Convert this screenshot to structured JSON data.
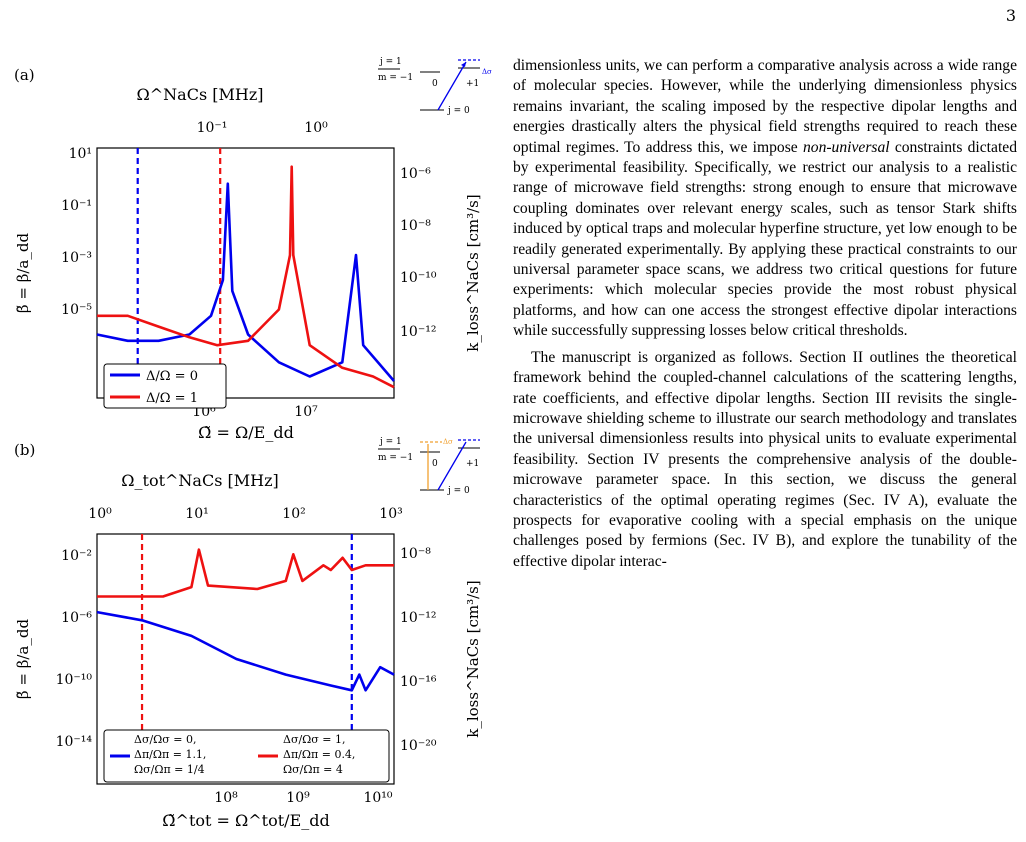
{
  "page_number": "3",
  "paragraph1": {
    "part1": "dimensionless units, we can perform a comparative analysis across a wide range of molecular species. However, while the underlying dimensionless physics remains invariant, the scaling imposed by the respective dipolar lengths and energies drastically alters the physical field strengths required to reach these optimal regimes. To address this, we impose ",
    "emph": "non-universal",
    "part2": " constraints dictated by experimental feasibility. Specifically, we restrict our analysis to a realistic range of microwave field strengths: strong enough to ensure that microwave coupling dominates over relevant energy scales, such as tensor Stark shifts induced by optical traps and molecular hyperfine structure, yet low enough to be readily generated experimentally. By applying these practical constraints to our universal parameter space scans, we address two critical questions for future experiments: which molecular species provide the most robust physical platforms, and how can one access the strongest effective dipolar interactions while successfully suppressing losses below critical thresholds."
  },
  "paragraph2": "The manuscript is organized as follows. Section II outlines the theoretical framework behind the coupled-channel calculations of the scattering lengths, rate coefficients, and effective dipolar lengths. Section III revisits the single-microwave shielding scheme to illustrate our search methodology and translates the universal dimensionless results into physical units to evaluate experimental feasibility. Section IV presents the comprehensive analysis of the double-microwave parameter space. In this section, we discuss the general characteristics of the optimal operating regimes (Sec. IV A), evaluate the prospects for evaporative cooling with a special emphasis on the unique challenges posed by fermions (Sec. IV B), and explore the tunability of the effective dipolar interac-",
  "figures": [
    {
      "panel_label": "(a)",
      "top_axis_label": "Ω^NaCs [MHz]",
      "bottom_axis_label": "Ω̃ = Ω/E_dd",
      "left_axis_label": "β̃ = β/a_dd",
      "right_axis_label": "k_loss^NaCs [cm³/s]",
      "top_ticks": [
        "10⁻¹",
        "10⁰"
      ],
      "bottom_ticks": [
        "10⁶",
        "10⁷"
      ],
      "left_ticks": [
        "10¹",
        "10⁻¹",
        "10⁻³",
        "10⁻⁵"
      ],
      "right_ticks": [
        "10⁻⁶",
        "10⁻⁸",
        "10⁻¹⁰",
        "10⁻¹²"
      ],
      "legend": [
        "Δ/Ω = 0",
        "Δ/Ω = 1"
      ],
      "inset": {
        "j1": "j = 1",
        "m": "m = −1",
        "zero": "0",
        "plus1": "+1",
        "j0": "j = 0",
        "delta": "Δσ"
      }
    },
    {
      "panel_label": "(b)",
      "top_axis_label": "Ω_tot^NaCs [MHz]",
      "bottom_axis_label": "Ω̃^tot = Ω^tot/E_dd",
      "left_axis_label": "β̃ = β/a_dd",
      "right_axis_label": "k_loss^NaCs [cm³/s]",
      "top_ticks": [
        "10⁰",
        "10¹",
        "10²",
        "10³"
      ],
      "bottom_ticks": [
        "10⁸",
        "10⁹",
        "10¹⁰"
      ],
      "left_ticks": [
        "10⁻²",
        "10⁻⁶",
        "10⁻¹⁰",
        "10⁻¹⁴"
      ],
      "right_ticks": [
        "10⁻⁸",
        "10⁻¹²",
        "10⁻¹⁶",
        "10⁻²⁰"
      ],
      "legend": [
        [
          "Δσ/Ωσ = 0,",
          "Δπ/Ωπ = 1.1,",
          "Ωσ/Ωπ = 1/4"
        ],
        [
          "Δσ/Ωσ = 1,",
          "Δπ/Ωπ = 0.4,",
          "Ωσ/Ωπ = 4"
        ]
      ],
      "inset": {
        "j1": "j = 1",
        "m": "m = −1",
        "zero": "0",
        "plus1": "+1",
        "j0": "j = 0",
        "delta": "Δσ"
      }
    }
  ],
  "colors": {
    "blue": "#0000ee",
    "red": "#ee1111",
    "orange": "#f0a030"
  },
  "chart_data": [
    {
      "type": "line",
      "title": "(a)",
      "xlabel": "Ω̃ = Ω/E_dd",
      "ylabel": "β̃ = β/a_dd",
      "x_scale": "log",
      "y_scale": "log",
      "xlim": [
        100000,
        80000000
      ],
      "ylim": [
        1e-06,
        10
      ],
      "series": [
        {
          "name": "Δ/Ω = 0",
          "x": [
            100000,
            200000,
            400000,
            800000,
            1300000,
            1700000,
            1900000,
            2100000,
            3000000,
            6000000,
            12000000,
            25000000,
            34000000,
            40000000,
            80000000
          ],
          "values": [
            6e-05,
            4e-05,
            4e-05,
            6e-05,
            0.0002,
            0.002,
            1.0,
            0.001,
            6e-05,
            1e-05,
            4e-06,
            1e-05,
            0.01,
            3e-05,
            3e-06
          ]
        },
        {
          "name": "Δ/Ω = 1",
          "x": [
            100000,
            200000,
            400000,
            800000,
            1500000,
            3000000,
            6000000,
            7700000,
            8000000,
            8300000,
            12000000,
            25000000,
            50000000,
            80000000
          ],
          "values": [
            0.0002,
            0.0002,
            0.0001,
            5e-05,
            3e-05,
            4e-05,
            0.0003,
            0.01,
            3.0,
            0.01,
            3e-05,
            7e-06,
            4e-06,
            2e-06
          ]
        }
      ],
      "vlines": [
        {
          "x": 250000,
          "color": "blue"
        },
        {
          "x": 1600000,
          "color": "red"
        }
      ]
    },
    {
      "type": "line",
      "title": "(b)",
      "xlabel": "Ω̃^tot = Ω^tot/E_dd",
      "ylabel": "β̃ = β/a_dd",
      "x_scale": "log",
      "y_scale": "log",
      "xlim": [
        10000000,
        14000000000
      ],
      "ylim": [
        1e-16,
        1
      ],
      "series": [
        {
          "name": "Δσ/Ωσ = 0, Δπ/Ωπ = 1.1, Ωσ/Ωπ = 1/4",
          "x": [
            10000000,
            30000000,
            100000000,
            300000000,
            1000000000,
            3000000000,
            5000000000,
            6000000000,
            7000000000,
            10000000000,
            14000000000
          ],
          "values": [
            1e-05,
            3e-06,
            3e-07,
            1e-08,
            1e-09,
            2e-10,
            1e-10,
            1e-09,
            1e-10,
            3e-09,
            1e-09
          ]
        },
        {
          "name": "Δσ/Ωσ = 1, Δπ/Ωπ = 0.4, Ωσ/Ωπ = 4",
          "x": [
            10000000,
            50000000,
            100000000,
            120000000,
            150000000,
            500000000,
            1000000000,
            1200000000,
            1500000000,
            2500000000,
            3000000000,
            4000000000,
            5000000000,
            7000000000,
            14000000000
          ],
          "values": [
            0.0001,
            0.0001,
            0.0004,
            0.1,
            0.0005,
            0.0003,
            0.001,
            0.05,
            0.001,
            0.01,
            0.005,
            0.03,
            0.005,
            0.01,
            0.01
          ]
        }
      ],
      "vlines": [
        {
          "x": 30000000,
          "color": "red"
        },
        {
          "x": 5000000000,
          "color": "blue"
        }
      ]
    }
  ]
}
